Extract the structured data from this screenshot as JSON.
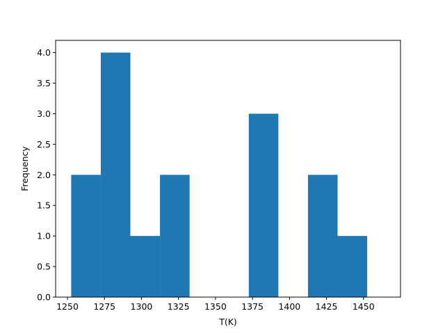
{
  "chart_data": {
    "type": "bar",
    "title": "",
    "xlabel": "T(K)",
    "ylabel": "Frequency",
    "xlim": [
      1242,
      1475
    ],
    "ylim": [
      0,
      4.2
    ],
    "grid": false,
    "legend": "none",
    "bar_color": "#1f77b4",
    "bins": [
      {
        "x0": 1252.5,
        "x1": 1272.5,
        "value": 2
      },
      {
        "x0": 1272.5,
        "x1": 1292.5,
        "value": 4
      },
      {
        "x0": 1292.5,
        "x1": 1312.5,
        "value": 1
      },
      {
        "x0": 1312.5,
        "x1": 1332.5,
        "value": 2
      },
      {
        "x0": 1332.5,
        "x1": 1352.5,
        "value": 0
      },
      {
        "x0": 1352.5,
        "x1": 1372.5,
        "value": 0
      },
      {
        "x0": 1372.5,
        "x1": 1392.5,
        "value": 3
      },
      {
        "x0": 1392.5,
        "x1": 1412.5,
        "value": 0
      },
      {
        "x0": 1412.5,
        "x1": 1432.5,
        "value": 2
      },
      {
        "x0": 1432.5,
        "x1": 1452.5,
        "value": 1
      }
    ],
    "xticks": [
      1250,
      1275,
      1300,
      1325,
      1350,
      1375,
      1400,
      1425,
      1450
    ],
    "xtick_labels": [
      "1250",
      "1275",
      "1300",
      "1325",
      "1350",
      "1375",
      "1400",
      "1425",
      "1450"
    ],
    "yticks": [
      0,
      0.5,
      1,
      1.5,
      2,
      2.5,
      3,
      3.5,
      4
    ],
    "ytick_labels": [
      "0.0",
      "0.5",
      "1.0",
      "1.5",
      "2.0",
      "2.5",
      "3.0",
      "3.5",
      "4.0"
    ]
  }
}
